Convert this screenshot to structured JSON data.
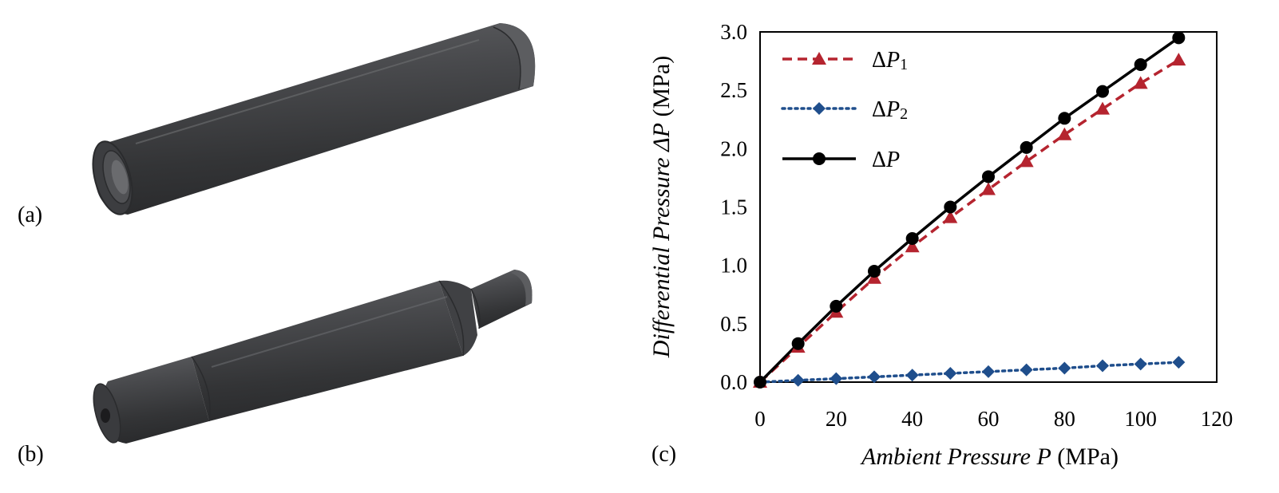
{
  "panels": {
    "a": {
      "label": "(a)"
    },
    "b": {
      "label": "(b)"
    },
    "c": {
      "label": "(c)"
    }
  },
  "colors": {
    "cylinder_dark": "#3a3b3d",
    "cylinder_mid": "#5a5b5e",
    "cylinder_light": "#7d7e81",
    "axis": "#000000",
    "dp1": "#b5242f",
    "dp2": "#1f4e8c",
    "dp": "#000000"
  },
  "chart_data": {
    "type": "line",
    "title": "",
    "xlabel": {
      "italic": "Ambient Pressure P",
      "unit": "(MPa)"
    },
    "ylabel": {
      "italic": "Differential Pressure ΔP",
      "unit": "(MPa)"
    },
    "xlim": [
      0,
      120
    ],
    "ylim": [
      0,
      3.0
    ],
    "xticks": [
      0,
      20,
      40,
      60,
      80,
      100,
      120
    ],
    "yticks": [
      "0.0",
      "0.5",
      "1.0",
      "1.5",
      "2.0",
      "2.5",
      "3.0"
    ],
    "x": [
      0,
      10,
      20,
      30,
      40,
      50,
      60,
      70,
      80,
      90,
      100,
      110
    ],
    "grid": false,
    "legend_position": "top-left",
    "series": [
      {
        "name": "ΔP",
        "name_sub": "1",
        "style": "dashed",
        "marker": "triangle",
        "color": "#b5242f",
        "values": [
          0,
          0.3,
          0.6,
          0.89,
          1.16,
          1.41,
          1.65,
          1.89,
          2.12,
          2.34,
          2.56,
          2.76
        ]
      },
      {
        "name": "ΔP",
        "name_sub": "2",
        "style": "dotted",
        "marker": "diamond",
        "color": "#1f4e8c",
        "values": [
          0,
          0.015,
          0.03,
          0.045,
          0.06,
          0.075,
          0.09,
          0.105,
          0.12,
          0.14,
          0.155,
          0.17
        ]
      },
      {
        "name": "ΔP",
        "name_sub": "",
        "style": "solid",
        "marker": "circle",
        "color": "#000000",
        "values": [
          0,
          0.33,
          0.65,
          0.95,
          1.23,
          1.5,
          1.76,
          2.01,
          2.26,
          2.49,
          2.72,
          2.95
        ]
      }
    ]
  }
}
